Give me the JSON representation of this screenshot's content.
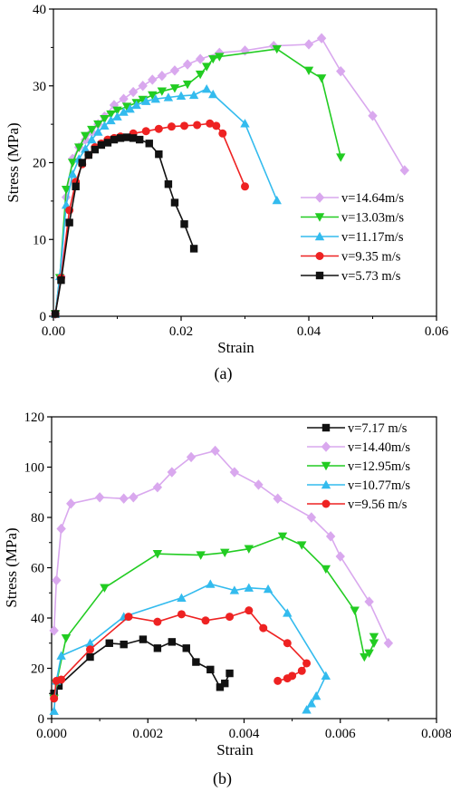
{
  "chart_data": [
    {
      "type": "line",
      "panel_label": "(a)",
      "xlabel": "Strain",
      "ylabel": "Stress (MPa)",
      "xlim": [
        0,
        0.06
      ],
      "ylim": [
        0,
        40
      ],
      "xticks": [
        0.0,
        0.02,
        0.04,
        0.06
      ],
      "xtick_labels": [
        "0.00",
        "0.02",
        "0.04",
        "0.06"
      ],
      "yticks": [
        0,
        10,
        20,
        30,
        40
      ],
      "ytick_labels": [
        "0",
        "10",
        "20",
        "30",
        "40"
      ],
      "legend_position": "right-middle",
      "series": [
        {
          "name": "v=14.64m/s",
          "color": "#d9a8ee",
          "marker": "diamond",
          "points": [
            [
              0.0003,
              0.3
            ],
            [
              0.0012,
              5.2
            ],
            [
              0.002,
              15.5
            ],
            [
              0.003,
              20.5
            ],
            [
              0.004,
              22
            ],
            [
              0.005,
              23
            ],
            [
              0.006,
              24
            ],
            [
              0.007,
              25
            ],
            [
              0.008,
              26
            ],
            [
              0.0095,
              27.5
            ],
            [
              0.011,
              28.3
            ],
            [
              0.0125,
              29.2
            ],
            [
              0.014,
              30
            ],
            [
              0.0155,
              30.8
            ],
            [
              0.017,
              31.3
            ],
            [
              0.019,
              32
            ],
            [
              0.021,
              32.8
            ],
            [
              0.023,
              33.5
            ],
            [
              0.026,
              34.3
            ],
            [
              0.03,
              34.6
            ],
            [
              0.0345,
              35.2
            ],
            [
              0.04,
              35.4
            ],
            [
              0.042,
              36.2
            ],
            [
              0.045,
              31.9
            ],
            [
              0.05,
              26.1
            ],
            [
              0.055,
              19
            ]
          ]
        },
        {
          "name": "v=13.03m/s",
          "color": "#22cc22",
          "marker": "triangle-down",
          "points": [
            [
              0.0003,
              0.3
            ],
            [
              0.001,
              5
            ],
            [
              0.002,
              16.5
            ],
            [
              0.003,
              20
            ],
            [
              0.004,
              22
            ],
            [
              0.005,
              23.5
            ],
            [
              0.006,
              24.3
            ],
            [
              0.007,
              25
            ],
            [
              0.008,
              25.7
            ],
            [
              0.009,
              26.3
            ],
            [
              0.01,
              26.8
            ],
            [
              0.0115,
              27.3
            ],
            [
              0.013,
              27.8
            ],
            [
              0.014,
              28.2
            ],
            [
              0.0155,
              28.8
            ],
            [
              0.017,
              29.3
            ],
            [
              0.019,
              29.7
            ],
            [
              0.021,
              30.2
            ],
            [
              0.023,
              31.5
            ],
            [
              0.024,
              32.5
            ],
            [
              0.025,
              33.5
            ],
            [
              0.026,
              33.8
            ],
            [
              0.035,
              34.8
            ],
            [
              0.04,
              32
            ],
            [
              0.042,
              31
            ],
            [
              0.045,
              20.7
            ]
          ]
        },
        {
          "name": "v=11.17m/s",
          "color": "#33bbee",
          "marker": "triangle-up",
          "points": [
            [
              0.0003,
              0.3
            ],
            [
              0.001,
              5.2
            ],
            [
              0.002,
              14.5
            ],
            [
              0.003,
              18.5
            ],
            [
              0.004,
              20.5
            ],
            [
              0.005,
              21.8
            ],
            [
              0.006,
              23
            ],
            [
              0.007,
              24
            ],
            [
              0.008,
              24.8
            ],
            [
              0.009,
              25.5
            ],
            [
              0.01,
              26
            ],
            [
              0.011,
              26.6
            ],
            [
              0.012,
              27
            ],
            [
              0.013,
              27.5
            ],
            [
              0.0145,
              28
            ],
            [
              0.016,
              28.3
            ],
            [
              0.018,
              28.5
            ],
            [
              0.02,
              28.7
            ],
            [
              0.022,
              28.8
            ],
            [
              0.024,
              29.6
            ],
            [
              0.025,
              28.9
            ],
            [
              0.03,
              25.1
            ],
            [
              0.035,
              15.1
            ]
          ]
        },
        {
          "name": "v=9.35  m/s",
          "color": "#ee2222",
          "marker": "circle",
          "points": [
            [
              0.0003,
              0.3
            ],
            [
              0.0012,
              5
            ],
            [
              0.0025,
              13.8
            ],
            [
              0.0035,
              17.5
            ],
            [
              0.0045,
              19.8
            ],
            [
              0.0055,
              21
            ],
            [
              0.0065,
              22
            ],
            [
              0.0075,
              22.5
            ],
            [
              0.0085,
              23
            ],
            [
              0.0095,
              23.2
            ],
            [
              0.0105,
              23.4
            ],
            [
              0.0125,
              23.8
            ],
            [
              0.0145,
              24.1
            ],
            [
              0.0165,
              24.4
            ],
            [
              0.0185,
              24.7
            ],
            [
              0.0205,
              24.8
            ],
            [
              0.0225,
              24.9
            ],
            [
              0.0245,
              25.1
            ],
            [
              0.0255,
              24.8
            ],
            [
              0.0265,
              23.8
            ],
            [
              0.03,
              16.9
            ]
          ]
        },
        {
          "name": "v=5.73  m/s",
          "color": "#111111",
          "marker": "square",
          "points": [
            [
              0.0003,
              0.3
            ],
            [
              0.0012,
              4.7
            ],
            [
              0.0025,
              12.2
            ],
            [
              0.0035,
              16.9
            ],
            [
              0.0045,
              20
            ],
            [
              0.0055,
              21
            ],
            [
              0.0065,
              21.7
            ],
            [
              0.0075,
              22.3
            ],
            [
              0.0085,
              22.6
            ],
            [
              0.0095,
              23
            ],
            [
              0.0105,
              23.2
            ],
            [
              0.0115,
              23.3
            ],
            [
              0.0125,
              23.2
            ],
            [
              0.0135,
              23
            ],
            [
              0.015,
              22.5
            ],
            [
              0.0165,
              21.1
            ],
            [
              0.018,
              17.2
            ],
            [
              0.019,
              14.8
            ],
            [
              0.0205,
              12
            ],
            [
              0.022,
              8.8
            ]
          ]
        }
      ]
    },
    {
      "type": "line",
      "panel_label": "(b)",
      "xlabel": "Strain",
      "ylabel": "Stress (MPa)",
      "xlim": [
        0,
        0.008
      ],
      "ylim": [
        0,
        120
      ],
      "xticks": [
        0,
        0.002,
        0.004,
        0.006,
        0.008
      ],
      "xtick_labels": [
        "0.000",
        "0.002",
        "0.004",
        "0.006",
        "0.008"
      ],
      "yticks": [
        0,
        20,
        40,
        60,
        80,
        100,
        120
      ],
      "ytick_labels": [
        "0",
        "20",
        "40",
        "60",
        "80",
        "100",
        "120"
      ],
      "legend_position": "top-right",
      "series": [
        {
          "name": "v=7.17  m/s",
          "color": "#111111",
          "marker": "square",
          "points": [
            [
              5e-05,
              10
            ],
            [
              0.00015,
              13
            ],
            [
              0.0008,
              24.5
            ],
            [
              0.0012,
              30
            ],
            [
              0.0015,
              29.5
            ],
            [
              0.0019,
              31.5
            ],
            [
              0.0022,
              28
            ],
            [
              0.0025,
              30.5
            ],
            [
              0.0028,
              28
            ],
            [
              0.003,
              22.5
            ],
            [
              0.0033,
              19.5
            ],
            [
              0.0035,
              12.5
            ],
            [
              0.0036,
              14
            ],
            [
              0.0037,
              18
            ]
          ]
        },
        {
          "name": "v=14.40m/s",
          "color": "#d9a8ee",
          "marker": "diamond",
          "points": [
            [
              5e-05,
              35
            ],
            [
              0.0001,
              55
            ],
            [
              0.0002,
              75.5
            ],
            [
              0.0004,
              85.5
            ],
            [
              0.001,
              88
            ],
            [
              0.0015,
              87.5
            ],
            [
              0.0017,
              88
            ],
            [
              0.0022,
              92
            ],
            [
              0.0025,
              98
            ],
            [
              0.0029,
              104
            ],
            [
              0.0034,
              106.5
            ],
            [
              0.0038,
              98
            ],
            [
              0.0043,
              93
            ],
            [
              0.0047,
              87.5
            ],
            [
              0.0054,
              80
            ],
            [
              0.0058,
              72.5
            ],
            [
              0.006,
              64.5
            ],
            [
              0.0066,
              46.5
            ],
            [
              0.007,
              30
            ]
          ]
        },
        {
          "name": "v=12.95m/s",
          "color": "#22cc22",
          "marker": "triangle-down",
          "points": [
            [
              5e-05,
              8
            ],
            [
              0.0001,
              14
            ],
            [
              0.0003,
              32
            ],
            [
              0.0011,
              52
            ],
            [
              0.0022,
              65.5
            ],
            [
              0.0031,
              65
            ],
            [
              0.0036,
              66
            ],
            [
              0.0041,
              67.5
            ],
            [
              0.0048,
              72.5
            ],
            [
              0.0052,
              69
            ],
            [
              0.0057,
              59.5
            ],
            [
              0.0063,
              43
            ],
            [
              0.0065,
              24.5
            ],
            [
              0.0066,
              26
            ],
            [
              0.0067,
              30
            ],
            [
              0.0067,
              32.5
            ]
          ]
        },
        {
          "name": "v=10.77m/s",
          "color": "#33bbee",
          "marker": "triangle-up",
          "points": [
            [
              5e-05,
              3
            ],
            [
              0.0001,
              15
            ],
            [
              0.0002,
              25
            ],
            [
              0.0008,
              30
            ],
            [
              0.0015,
              40.5
            ],
            [
              0.0027,
              48
            ],
            [
              0.0033,
              53.5
            ],
            [
              0.0038,
              51
            ],
            [
              0.0041,
              52
            ],
            [
              0.0045,
              51.5
            ],
            [
              0.0049,
              42
            ],
            [
              0.0057,
              17
            ],
            [
              0.0055,
              9
            ],
            [
              0.0054,
              6
            ],
            [
              0.0053,
              3.5
            ]
          ]
        },
        {
          "name": "v=9.56  m/s",
          "color": "#ee2222",
          "marker": "circle",
          "points": [
            [
              5e-05,
              8
            ],
            [
              0.0001,
              15
            ],
            [
              0.0002,
              15.5
            ],
            [
              0.0008,
              27.5
            ],
            [
              0.0016,
              40.5
            ],
            [
              0.0022,
              38.5
            ],
            [
              0.0027,
              41.5
            ],
            [
              0.0032,
              39
            ],
            [
              0.0037,
              40.5
            ],
            [
              0.0041,
              43
            ],
            [
              0.0044,
              36
            ],
            [
              0.0049,
              30
            ],
            [
              0.0053,
              22
            ],
            [
              0.0052,
              19
            ],
            [
              0.005,
              17
            ],
            [
              0.0049,
              16
            ],
            [
              0.0047,
              15
            ]
          ]
        }
      ]
    }
  ]
}
